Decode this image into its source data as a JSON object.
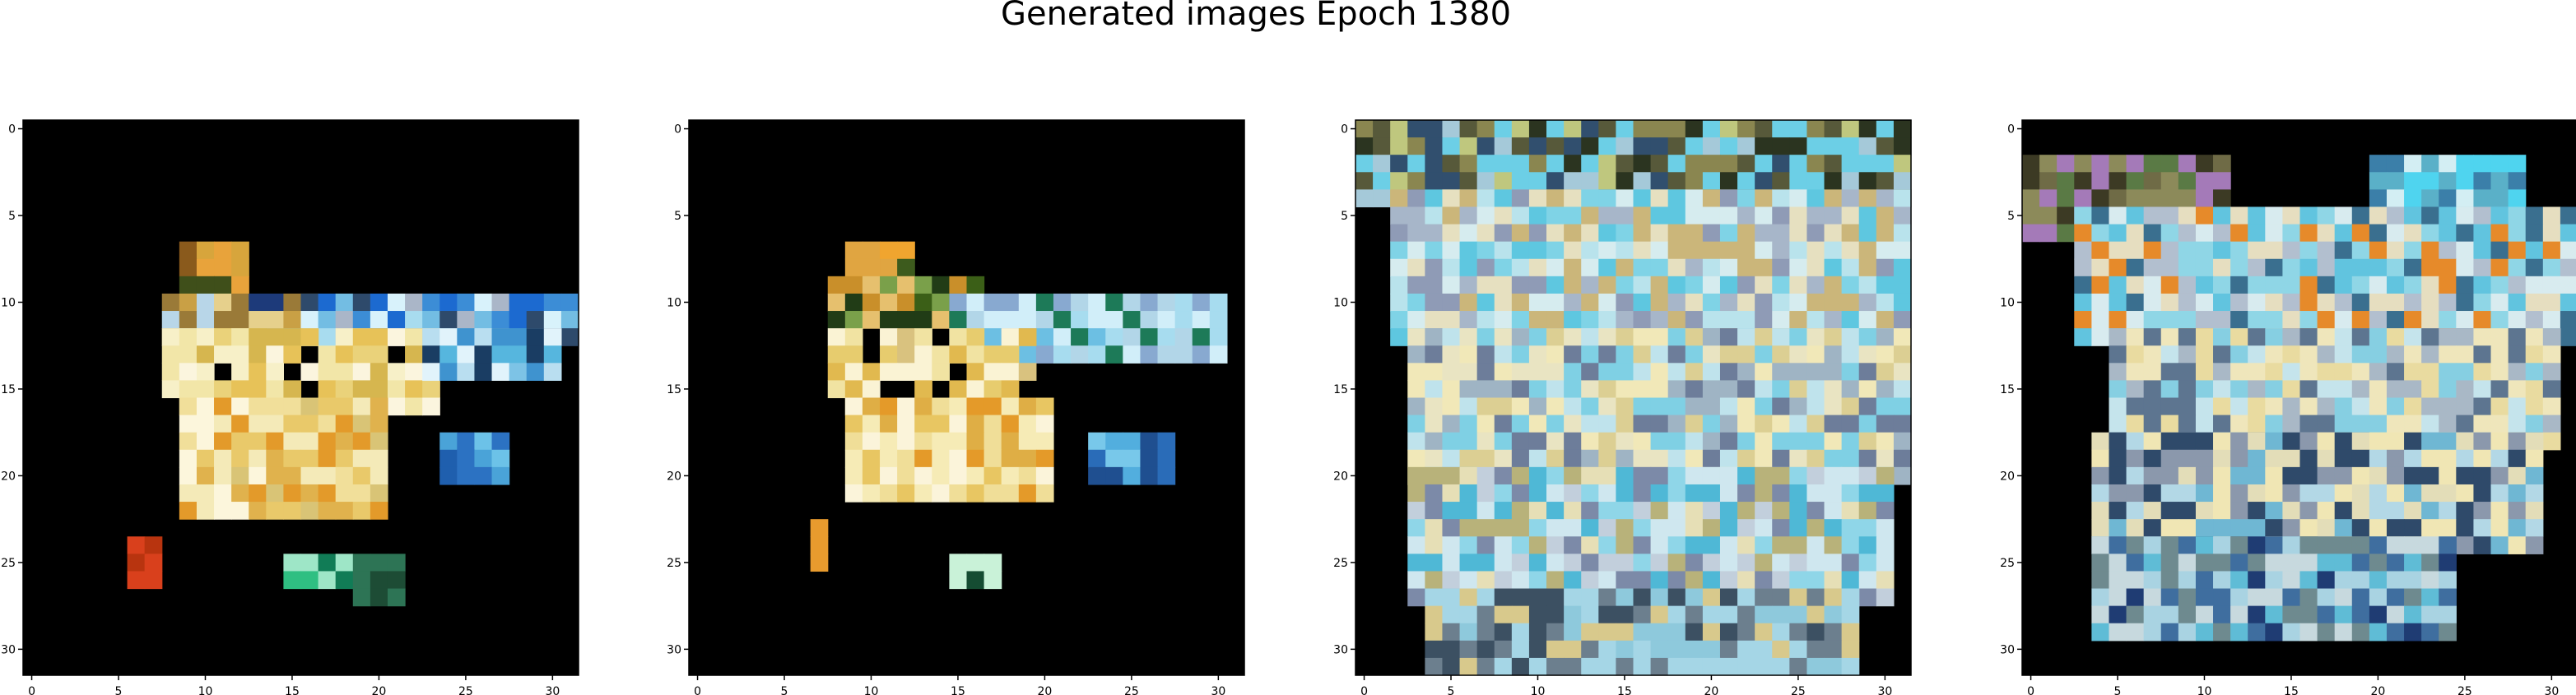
{
  "figure": {
    "title": "Generated images Epoch 1380"
  },
  "chart_data": [
    {
      "type": "heatmap",
      "panel": 1,
      "background": "#000000",
      "xlim": [
        -0.5,
        31.5
      ],
      "ylim": [
        31.5,
        -0.5
      ],
      "xticks": [
        0,
        5,
        10,
        15,
        20,
        25,
        30
      ],
      "yticks": [
        0,
        5,
        10,
        15,
        20,
        25,
        30
      ],
      "grid": false,
      "regions": [
        {
          "rows": [
            7,
            9
          ],
          "cols": [
            9,
            12
          ],
          "colors": [
            "#8a5a1c",
            "#d7a53c",
            "#3f4f1a",
            "#e8a33b"
          ]
        },
        {
          "rows": [
            10,
            12
          ],
          "cols": [
            8,
            16
          ],
          "colors": [
            "#e6d08c",
            "#1d3a7a",
            "#c9a045",
            "#9a7a38",
            "#b8d6e8",
            "#6fb4d9"
          ]
        },
        {
          "rows": [
            10,
            12
          ],
          "cols": [
            16,
            31
          ],
          "colors": [
            "#a8dcef",
            "#73bde3",
            "#3c8dd6",
            "#aab6c8",
            "#1c6ad0",
            "#d8f2fb",
            "#2e4a6b"
          ]
        },
        {
          "rows": [
            12,
            16
          ],
          "cols": [
            8,
            23
          ],
          "colors": [
            "#f2e6a8",
            "#ead27a",
            "#f7f0c8",
            "#e7c258",
            "#fbf5de",
            "#d6b64f",
            "#000000"
          ]
        },
        {
          "rows": [
            12,
            14
          ],
          "cols": [
            23,
            30
          ],
          "colors": [
            "#b9def0",
            "#7dc3e6",
            "#3f93cf",
            "#56b6de",
            "#e1f3fb",
            "#1a3d63"
          ]
        },
        {
          "rows": [
            16,
            22
          ],
          "cols": [
            9,
            20
          ],
          "colors": [
            "#f1df9a",
            "#e9c96a",
            "#f4eab8",
            "#e0b24d",
            "#e39a2a",
            "#d9c476",
            "#fcf6dc"
          ]
        },
        {
          "rows": [
            18,
            20
          ],
          "cols": [
            24,
            27
          ],
          "colors": [
            "#4aa3d8",
            "#1f5fae",
            "#6cc2e8",
            "#2c72c2"
          ]
        },
        {
          "rows": [
            24,
            26
          ],
          "cols": [
            6,
            7
          ],
          "colors": [
            "#d9401c",
            "#b8340f"
          ]
        },
        {
          "rows": [
            25,
            26
          ],
          "cols": [
            15,
            18
          ],
          "colors": [
            "#9ee6c7",
            "#2fbf82",
            "#117c56"
          ]
        },
        {
          "rows": [
            25,
            27
          ],
          "cols": [
            19,
            21
          ],
          "colors": [
            "#2d7455",
            "#1d4c35"
          ]
        }
      ]
    },
    {
      "type": "heatmap",
      "panel": 2,
      "background": "#000000",
      "xlim": [
        -0.5,
        31.5
      ],
      "ylim": [
        31.5,
        -0.5
      ],
      "xticks": [
        0,
        5,
        10,
        15,
        20,
        25,
        30
      ],
      "yticks": [
        0,
        5,
        10,
        15,
        20,
        25,
        30
      ],
      "grid": false,
      "regions": [
        {
          "rows": [
            7,
            9
          ],
          "cols": [
            9,
            12
          ],
          "colors": [
            "#9b6a22",
            "#e0a541",
            "#3d5b1d",
            "#f0a52f"
          ]
        },
        {
          "rows": [
            9,
            11
          ],
          "cols": [
            8,
            16
          ],
          "colors": [
            "#3b5f17",
            "#c98f2a",
            "#7aa04a",
            "#e6c06e",
            "#213c16"
          ]
        },
        {
          "rows": [
            10,
            13
          ],
          "cols": [
            15,
            30
          ],
          "colors": [
            "#a7dcef",
            "#6cbfe3",
            "#d1eef9",
            "#88a9d0",
            "#1d7a58",
            "#b2d6e8"
          ]
        },
        {
          "rows": [
            12,
            16
          ],
          "cols": [
            8,
            19
          ],
          "colors": [
            "#f1e3a2",
            "#e7cc6e",
            "#faf3d4",
            "#e1b94f",
            "#000000",
            "#d9c27f"
          ]
        },
        {
          "rows": [
            16,
            21
          ],
          "cols": [
            9,
            20
          ],
          "colors": [
            "#f0de98",
            "#e8c662",
            "#f6ebb6",
            "#dfae45",
            "#e49a29",
            "#fbf4da"
          ]
        },
        {
          "rows": [
            18,
            20
          ],
          "cols": [
            23,
            27
          ],
          "colors": [
            "#52aede",
            "#2a6cb8",
            "#78c8ea",
            "#1f4f90"
          ]
        },
        {
          "rows": [
            23,
            25
          ],
          "cols": [
            7,
            7
          ],
          "colors": [
            "#e89b2e",
            "#e8a435"
          ]
        },
        {
          "rows": [
            25,
            26
          ],
          "cols": [
            15,
            17
          ],
          "colors": [
            "#c9f2d8",
            "#40c488",
            "#154c32"
          ]
        }
      ]
    },
    {
      "type": "heatmap",
      "panel": 3,
      "background": "#000000",
      "xlim": [
        -0.5,
        31.5
      ],
      "ylim": [
        31.5,
        -0.5
      ],
      "xticks": [
        0,
        5,
        10,
        15,
        20,
        25,
        30
      ],
      "yticks": [
        0,
        5,
        10,
        15,
        20,
        25,
        30
      ],
      "grid": false,
      "regions": [
        {
          "rows": [
            0,
            4
          ],
          "cols": [
            0,
            31
          ],
          "colors": [
            "#2b3420",
            "#57593a",
            "#8a8650",
            "#bfc77e",
            "#314f6e",
            "#6ccfe6",
            "#a5c9d9"
          ]
        },
        {
          "rows": [
            4,
            12
          ],
          "cols": [
            2,
            31
          ],
          "colors": [
            "#d6ecef",
            "#7fd3e6",
            "#b9e3ec",
            "#e6e0c0",
            "#a7b6c9",
            "#5ec7e0",
            "#cbb67a",
            "#8f9bb6"
          ]
        },
        {
          "rows": [
            12,
            20
          ],
          "cols": [
            3,
            31
          ],
          "colors": [
            "#e9e4c2",
            "#f1e8b8",
            "#bfe3ec",
            "#7fd0e4",
            "#dccf93",
            "#9fb4c4",
            "#6d7d9a"
          ]
        },
        {
          "rows": [
            20,
            27
          ],
          "cols": [
            3,
            30
          ],
          "colors": [
            "#cfe7ef",
            "#e6dfb6",
            "#8fd6e8",
            "#c2cfdc",
            "#b8b27a",
            "#4fb8d6",
            "#7c8aa8"
          ]
        },
        {
          "rows": [
            27,
            31
          ],
          "cols": [
            4,
            28
          ],
          "colors": [
            "#a5d6e6",
            "#6c7f8e",
            "#3c5062",
            "#d8c98c",
            "#8ec9dc"
          ]
        }
      ]
    },
    {
      "type": "heatmap",
      "panel": 4,
      "background": "#000000",
      "xlim": [
        -0.5,
        31.5
      ],
      "ylim": [
        31.5,
        -0.5
      ],
      "xticks": [
        0,
        5,
        10,
        15,
        20,
        25,
        30
      ],
      "yticks": [
        0,
        5,
        10,
        15,
        20,
        25,
        30
      ],
      "grid": false,
      "regions": [
        {
          "rows": [
            2,
            6
          ],
          "cols": [
            0,
            11
          ],
          "colors": [
            "#3c3a24",
            "#6f6b46",
            "#8c8a5a",
            "#5a7a45",
            "#a47ab8"
          ]
        },
        {
          "rows": [
            2,
            5
          ],
          "cols": [
            20,
            28
          ],
          "colors": [
            "#4fd4ef",
            "#3b7fa9",
            "#d3eef3",
            "#5ab0c8"
          ]
        },
        {
          "rows": [
            5,
            12
          ],
          "cols": [
            3,
            31
          ],
          "colors": [
            "#d8ebef",
            "#8fd6e6",
            "#e6dec0",
            "#b2bfcf",
            "#61c4df",
            "#3a6f8f",
            "#e68a2a"
          ]
        },
        {
          "rows": [
            12,
            18
          ],
          "cols": [
            5,
            30
          ],
          "colors": [
            "#efe6bb",
            "#e9dba0",
            "#c5e4ec",
            "#86cfe2",
            "#a9b8c6",
            "#5d7590"
          ]
        },
        {
          "rows": [
            18,
            24
          ],
          "cols": [
            4,
            29
          ],
          "colors": [
            "#e3ddb8",
            "#f0e6b4",
            "#b3d8e6",
            "#6fb7d3",
            "#8b98ac",
            "#2f4a6a"
          ]
        },
        {
          "rows": [
            24,
            29
          ],
          "cols": [
            4,
            24
          ],
          "colors": [
            "#a9d3e2",
            "#3f6e9f",
            "#1f3c73",
            "#5fbcd6",
            "#c7d9de",
            "#6e8a8f"
          ]
        }
      ]
    }
  ]
}
